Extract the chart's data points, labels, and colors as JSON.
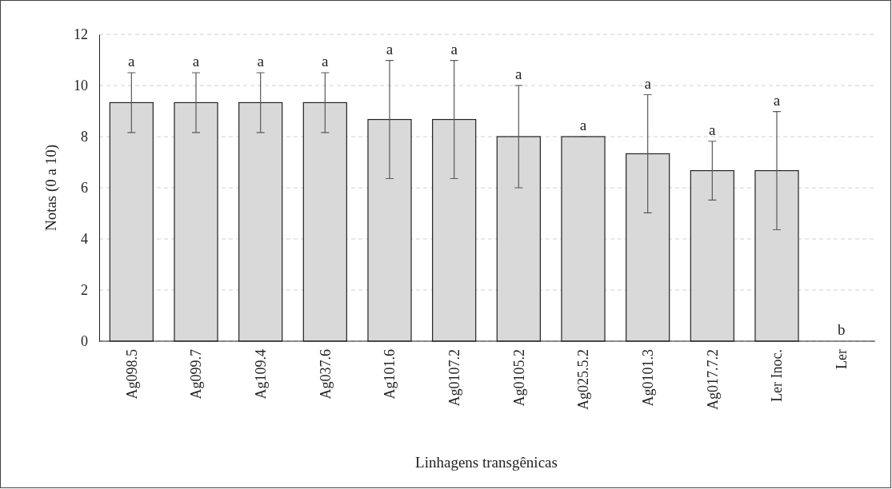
{
  "chart_data": {
    "type": "bar",
    "xlabel": "Linhagens transgênicas",
    "ylabel": "Notas (0 a 10)",
    "categories": [
      "Ag098.5",
      "Ag099.7",
      "Ag109.4",
      "Ag037.6",
      "Ag101.6",
      "Ag0107.2",
      "Ag0105.2",
      "Ag025.5.2",
      "Ag0101.3",
      "Ag017.7.2",
      "Ler Inoc.",
      "Ler"
    ],
    "values": [
      9.33,
      9.33,
      9.33,
      9.33,
      8.67,
      8.67,
      8,
      8,
      7.33,
      6.67,
      6.67,
      0
    ],
    "errors": [
      1.17,
      1.17,
      1.17,
      1.17,
      2.31,
      2.31,
      2,
      0,
      2.31,
      1.15,
      2.31,
      null
    ],
    "color": "#d9d9d9",
    "ylim": [
      0,
      12
    ],
    "yticks": [
      0,
      2,
      4,
      6,
      8,
      10,
      12
    ],
    "grid": "y",
    "annotations": [
      {
        "text": "a",
        "x": "Ag098.5",
        "y": 10.5
      },
      {
        "text": "a",
        "x": "Ag099.7",
        "y": 10.5
      },
      {
        "text": "a",
        "x": "Ag109.4",
        "y": 10.5
      },
      {
        "text": "a",
        "x": "Ag037.6",
        "y": 10.5
      },
      {
        "text": "a",
        "x": "Ag101.6",
        "y": 10.98
      },
      {
        "text": "a",
        "x": "Ag0107.2",
        "y": 10.98
      },
      {
        "text": "a",
        "x": "Ag0105.2",
        "y": 10
      },
      {
        "text": "a",
        "x": "Ag025.5.2",
        "y": 8
      },
      {
        "text": "a",
        "x": "Ag0101.3",
        "y": 9.64
      },
      {
        "text": "a",
        "x": "Ag017.7.2",
        "y": 7.82
      },
      {
        "text": "a",
        "x": "Ler Inoc.",
        "y": 8.98
      },
      {
        "text": "b",
        "x": "Ler",
        "y": 0
      }
    ]
  }
}
